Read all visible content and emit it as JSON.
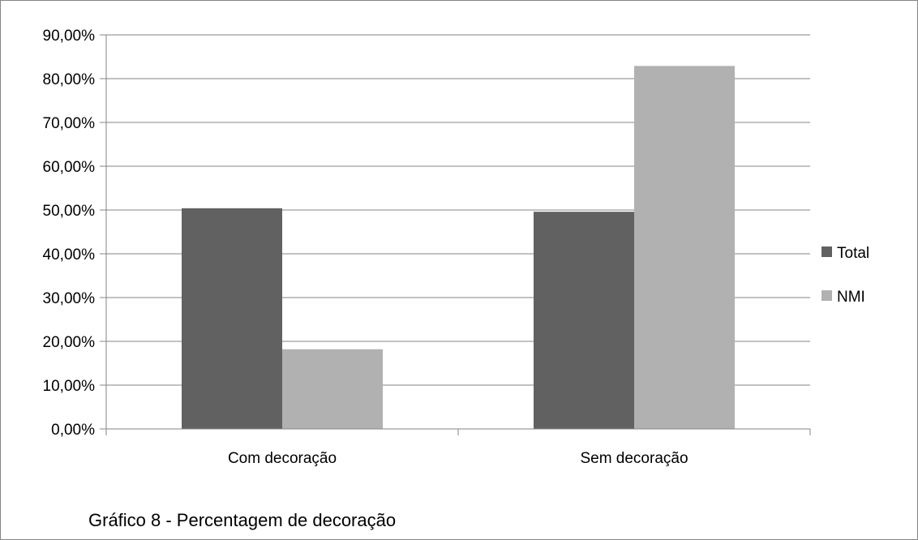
{
  "caption": "Gráfico 8 - Percentagem de decoração",
  "chart_data": {
    "type": "bar",
    "categories": [
      "Com decoração",
      "Sem decoração"
    ],
    "series": [
      {
        "name": "Total",
        "values": [
          0.504,
          0.496
        ],
        "color": "#616161"
      },
      {
        "name": "NMI",
        "values": [
          0.182,
          0.829
        ],
        "color": "#b1b1b1"
      }
    ],
    "ylim": [
      0,
      0.9
    ],
    "yticks": [
      0,
      0.1,
      0.2,
      0.3,
      0.4,
      0.5,
      0.6,
      0.7,
      0.8,
      0.9
    ],
    "ytick_labels": [
      "0,00%",
      "10,00%",
      "20,00%",
      "30,00%",
      "40,00%",
      "50,00%",
      "60,00%",
      "70,00%",
      "80,00%",
      "90,00%"
    ],
    "grid": true,
    "gridline_color": "#868686",
    "legend_position": "right"
  }
}
